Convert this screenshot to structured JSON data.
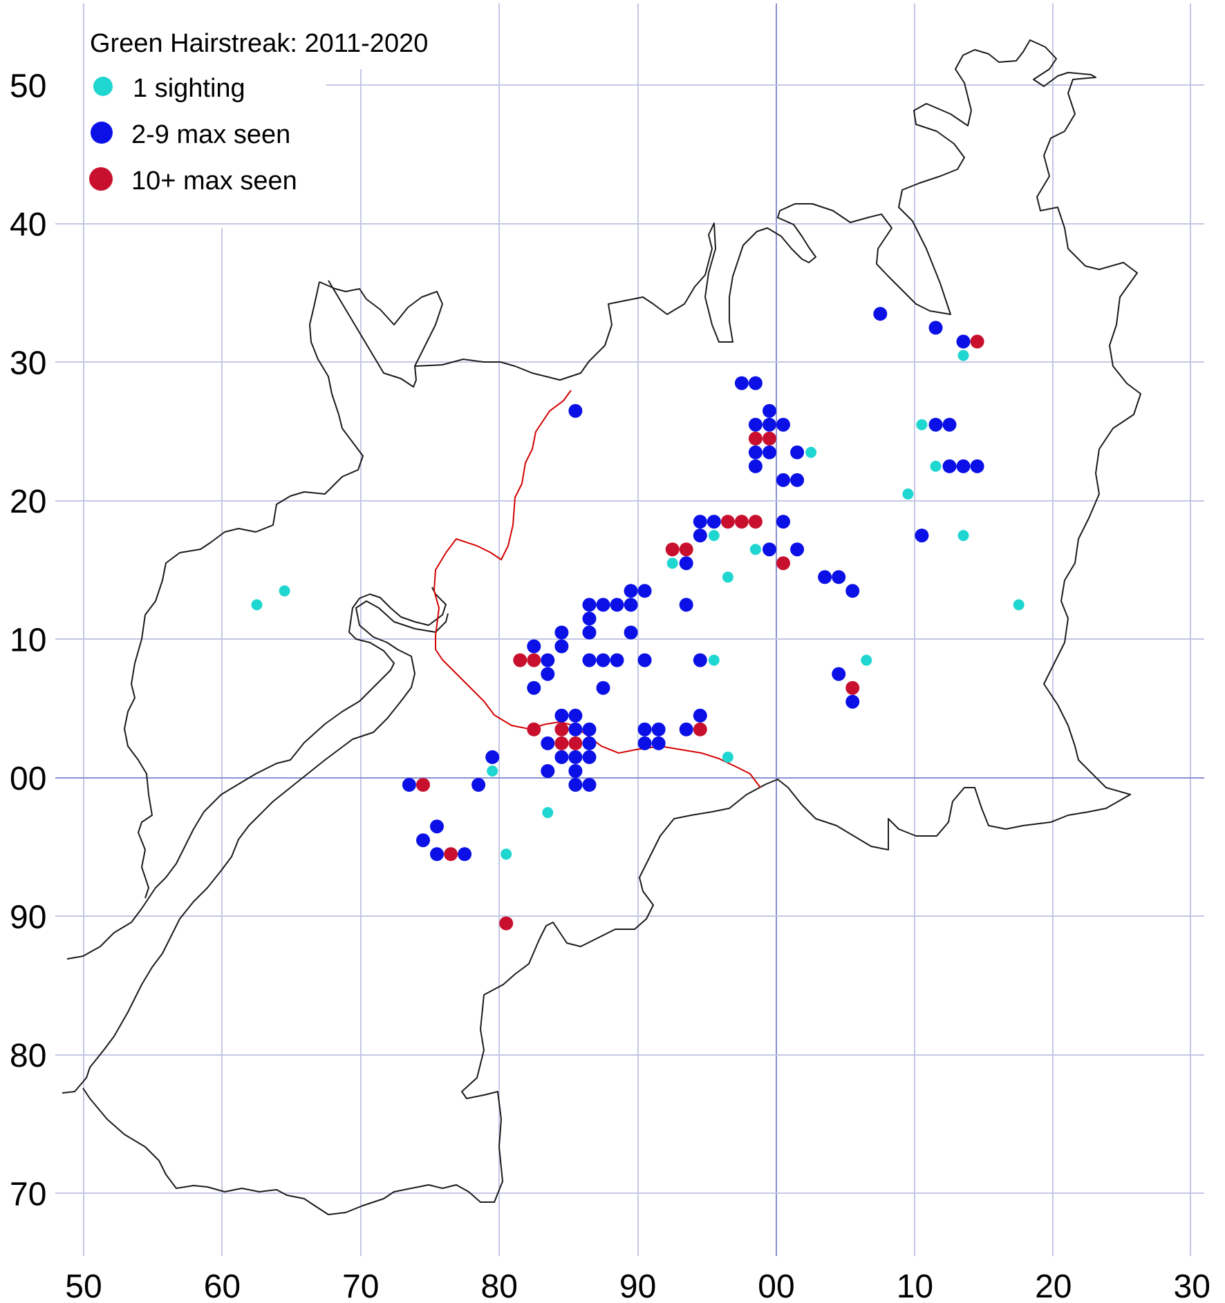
{
  "map": {
    "title": "Green Hairstreak:  2011-2020",
    "x_ticks": [
      "50",
      "60",
      "70",
      "80",
      "90",
      "00",
      "10",
      "20",
      "30"
    ],
    "y_ticks": [
      "50",
      "40",
      "30",
      "20",
      "10",
      "00",
      "90",
      "80",
      "70"
    ],
    "legend": [
      {
        "key": "single",
        "label": "1 sighting",
        "color": "#1fd6d0"
      },
      {
        "key": "few",
        "label": "2-9 max seen",
        "color": "#0a10e6"
      },
      {
        "key": "many",
        "label": "10+ max seen",
        "color": "#c8102e"
      }
    ]
  },
  "chart_data": {
    "type": "scatter",
    "title": "Green Hairstreak:  2011-2020",
    "xlim": [
      50,
      130
    ],
    "ylim": [
      65,
      155
    ],
    "grid": true,
    "legend_placement": "top-left",
    "series": [
      {
        "name": "1 sighting",
        "color": "#1fd6d0",
        "points": [
          [
            62.5,
            112.5
          ],
          [
            64.5,
            113.5
          ],
          [
            79.5,
            100.5
          ],
          [
            80.5,
            94.5
          ],
          [
            83.5,
            97.5
          ],
          [
            92.5,
            115.5
          ],
          [
            95.5,
            117.5
          ],
          [
            95.5,
            108.5
          ],
          [
            96.5,
            114.5
          ],
          [
            96.5,
            101.5
          ],
          [
            98.5,
            116.5
          ],
          [
            102.5,
            123.5
          ],
          [
            106.5,
            108.5
          ],
          [
            109.5,
            120.5
          ],
          [
            110.5,
            125.5
          ],
          [
            111.5,
            122.5
          ],
          [
            113.5,
            130.5
          ],
          [
            113.5,
            117.5
          ],
          [
            117.5,
            112.5
          ]
        ]
      },
      {
        "name": "2-9 max seen",
        "color": "#0a10e6",
        "points": [
          [
            73.5,
            99.5
          ],
          [
            74.5,
            95.5
          ],
          [
            75.5,
            96.5
          ],
          [
            75.5,
            94.5
          ],
          [
            77.5,
            94.5
          ],
          [
            78.5,
            99.5
          ],
          [
            79.5,
            101.5
          ],
          [
            82.5,
            109.5
          ],
          [
            82.5,
            106.5
          ],
          [
            83.5,
            108.5
          ],
          [
            83.5,
            107.5
          ],
          [
            83.5,
            102.5
          ],
          [
            83.5,
            100.5
          ],
          [
            84.5,
            110.5
          ],
          [
            84.5,
            109.5
          ],
          [
            84.5,
            104.5
          ],
          [
            84.5,
            101.5
          ],
          [
            85.5,
            126.5
          ],
          [
            85.5,
            104.5
          ],
          [
            85.5,
            103.5
          ],
          [
            85.5,
            101.5
          ],
          [
            85.5,
            100.5
          ],
          [
            85.5,
            99.5
          ],
          [
            86.5,
            112.5
          ],
          [
            86.5,
            111.5
          ],
          [
            86.5,
            110.5
          ],
          [
            86.5,
            108.5
          ],
          [
            86.5,
            103.5
          ],
          [
            86.5,
            102.5
          ],
          [
            86.5,
            101.5
          ],
          [
            86.5,
            99.5
          ],
          [
            87.5,
            112.5
          ],
          [
            87.5,
            108.5
          ],
          [
            87.5,
            106.5
          ],
          [
            88.5,
            112.5
          ],
          [
            88.5,
            108.5
          ],
          [
            89.5,
            113.5
          ],
          [
            89.5,
            112.5
          ],
          [
            89.5,
            110.5
          ],
          [
            90.5,
            113.5
          ],
          [
            90.5,
            108.5
          ],
          [
            90.5,
            103.5
          ],
          [
            90.5,
            102.5
          ],
          [
            91.5,
            103.5
          ],
          [
            91.5,
            102.5
          ],
          [
            93.5,
            115.5
          ],
          [
            93.5,
            112.5
          ],
          [
            93.5,
            103.5
          ],
          [
            94.5,
            118.5
          ],
          [
            94.5,
            117.5
          ],
          [
            94.5,
            108.5
          ],
          [
            94.5,
            104.5
          ],
          [
            95.5,
            118.5
          ],
          [
            97.5,
            128.5
          ],
          [
            98.5,
            128.5
          ],
          [
            98.5,
            125.5
          ],
          [
            98.5,
            123.5
          ],
          [
            98.5,
            122.5
          ],
          [
            99.5,
            126.5
          ],
          [
            99.5,
            125.5
          ],
          [
            99.5,
            123.5
          ],
          [
            99.5,
            116.5
          ],
          [
            100.5,
            125.5
          ],
          [
            100.5,
            121.5
          ],
          [
            100.5,
            118.5
          ],
          [
            101.5,
            123.5
          ],
          [
            101.5,
            121.5
          ],
          [
            101.5,
            116.5
          ],
          [
            103.5,
            114.5
          ],
          [
            104.5,
            114.5
          ],
          [
            104.5,
            107.5
          ],
          [
            105.5,
            113.5
          ],
          [
            105.5,
            105.5
          ],
          [
            107.5,
            133.5
          ],
          [
            110.5,
            117.5
          ],
          [
            111.5,
            132.5
          ],
          [
            111.5,
            125.5
          ],
          [
            112.5,
            125.5
          ],
          [
            112.5,
            122.5
          ],
          [
            113.5,
            131.5
          ],
          [
            113.5,
            122.5
          ],
          [
            114.5,
            122.5
          ]
        ]
      },
      {
        "name": "10+ max seen",
        "color": "#c8102e",
        "points": [
          [
            74.5,
            99.5
          ],
          [
            76.5,
            94.5
          ],
          [
            80.5,
            89.5
          ],
          [
            81.5,
            108.5
          ],
          [
            82.5,
            108.5
          ],
          [
            82.5,
            103.5
          ],
          [
            84.5,
            103.5
          ],
          [
            84.5,
            102.5
          ],
          [
            85.5,
            102.5
          ],
          [
            92.5,
            116.5
          ],
          [
            93.5,
            116.5
          ],
          [
            94.5,
            103.5
          ],
          [
            96.5,
            118.5
          ],
          [
            97.5,
            118.5
          ],
          [
            98.5,
            124.5
          ],
          [
            98.5,
            118.5
          ],
          [
            99.5,
            124.5
          ],
          [
            100.5,
            115.5
          ],
          [
            105.5,
            106.5
          ],
          [
            114.5,
            131.5
          ]
        ]
      }
    ]
  }
}
